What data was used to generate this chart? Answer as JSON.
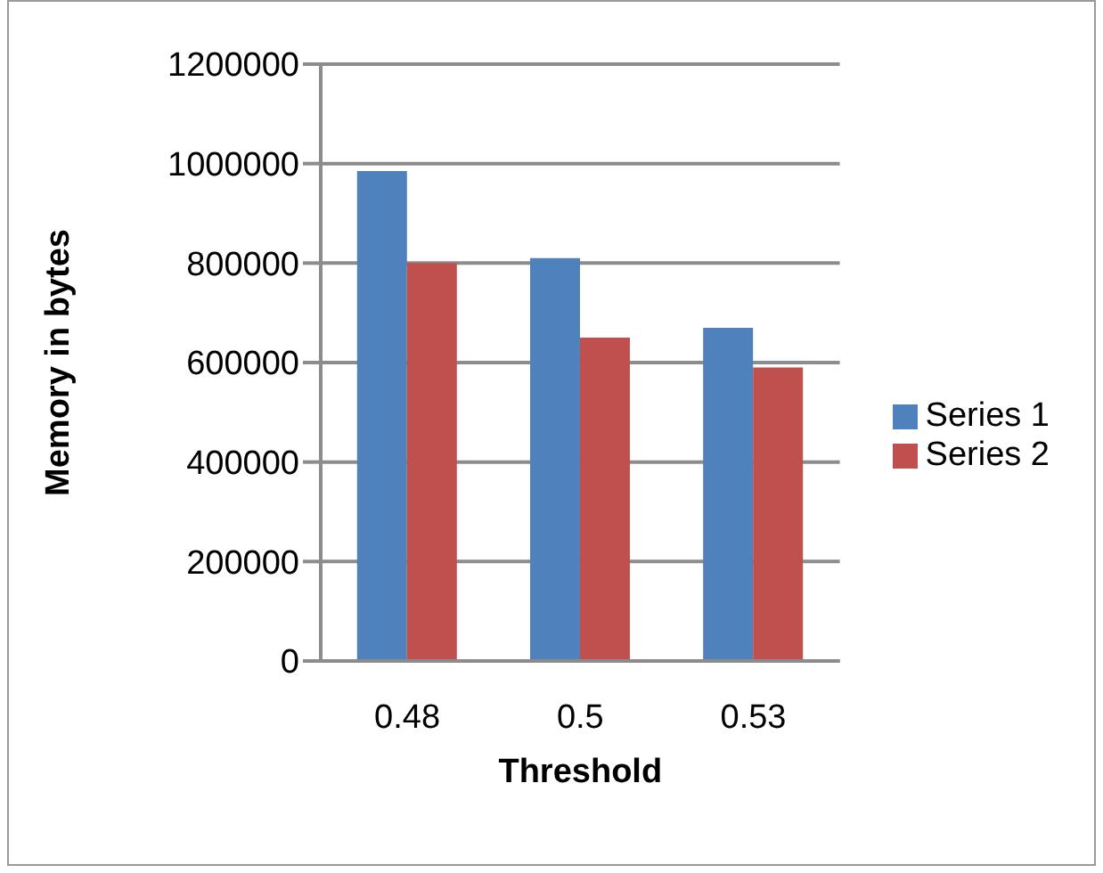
{
  "chart_data": {
    "type": "bar",
    "xlabel": "Threshold",
    "ylabel": "Memory in bytes",
    "categories": [
      "0.48",
      "0.5",
      "0.53"
    ],
    "series": [
      {
        "name": "Series 1",
        "color": "#4f81bd",
        "values": [
          985000,
          810000,
          670000
        ]
      },
      {
        "name": "Series 2",
        "color": "#c0504d",
        "values": [
          800000,
          650000,
          590000
        ]
      }
    ],
    "ylim": [
      0,
      1200000
    ],
    "yticks": [
      0,
      200000,
      400000,
      600000,
      800000,
      1000000,
      1200000
    ],
    "grid": "y",
    "legend": "right"
  }
}
